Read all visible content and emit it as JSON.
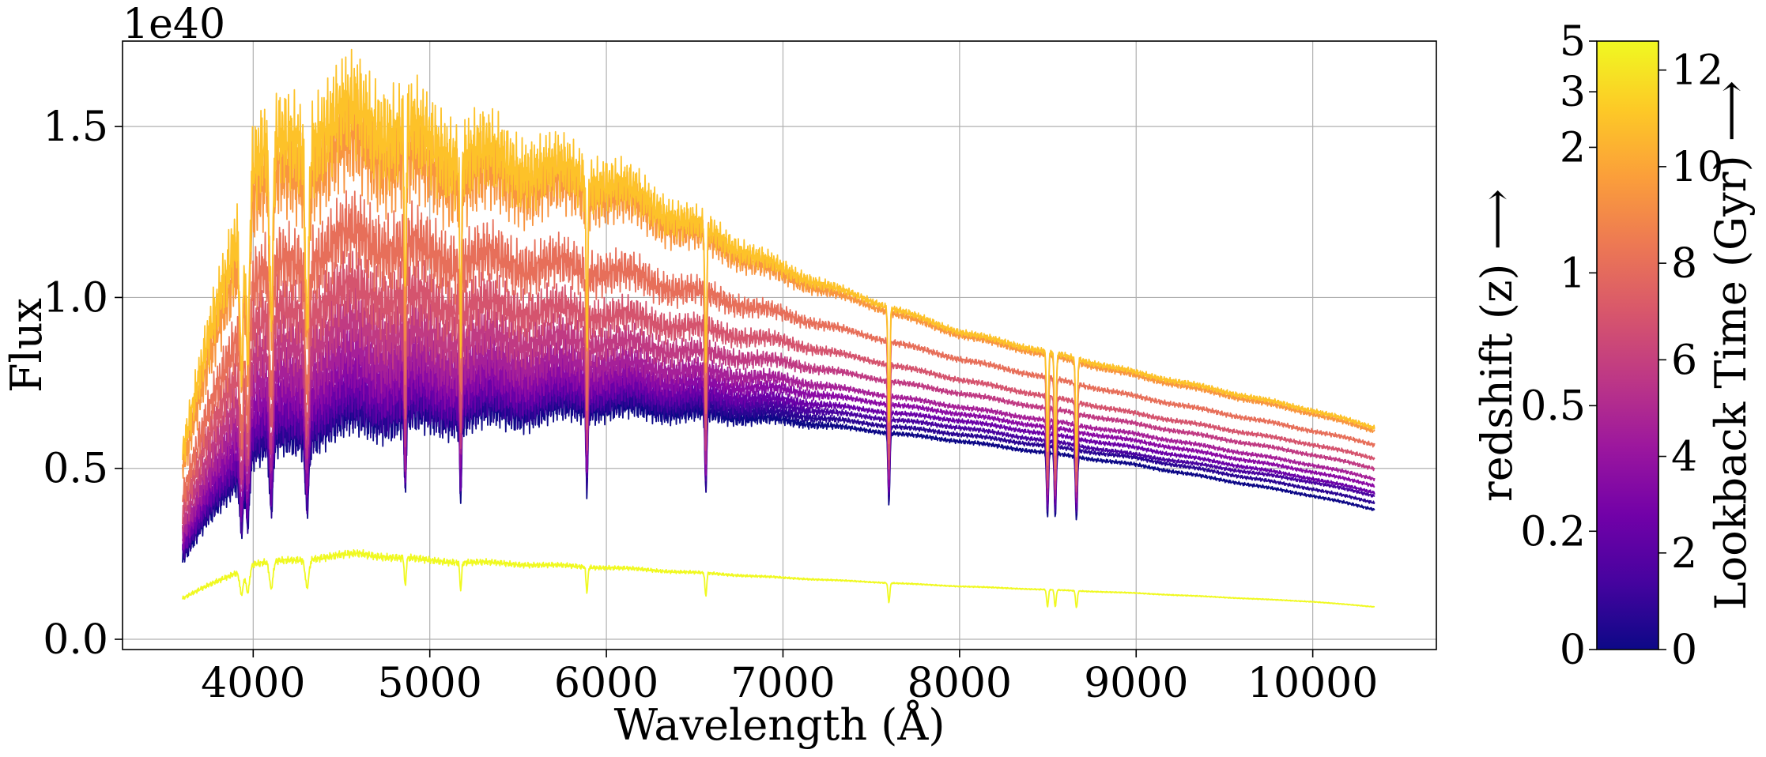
{
  "chart_data": {
    "type": "line",
    "title": "",
    "xlabel": "Wavelength (Å)",
    "ylabel": "Flux",
    "y_offset_text": "1e40",
    "xlim": [
      3260,
      10700
    ],
    "ylim": [
      -0.03,
      1.75
    ],
    "x_ticks": [
      {
        "value": 4000,
        "label": "4000"
      },
      {
        "value": 5000,
        "label": "5000"
      },
      {
        "value": 6000,
        "label": "6000"
      },
      {
        "value": 7000,
        "label": "7000"
      },
      {
        "value": 8000,
        "label": "8000"
      },
      {
        "value": 9000,
        "label": "9000"
      },
      {
        "value": 10000,
        "label": "10000"
      }
    ],
    "y_ticks": [
      {
        "value": 0.0,
        "label": "0.0"
      },
      {
        "value": 0.5,
        "label": "0.5"
      },
      {
        "value": 1.0,
        "label": "1.0"
      },
      {
        "value": 1.5,
        "label": "1.5"
      }
    ],
    "grid": true,
    "wavelength_range": [
      3600,
      10350
    ],
    "absorption_lines": [
      3934,
      3969,
      4102,
      4305,
      4861,
      5175,
      5890,
      6563,
      7600,
      8498,
      8542,
      8662
    ],
    "series": [
      {
        "lookback_gyr": 12.4,
        "color": "#f0f921",
        "x": [
          3600,
          4000,
          4600,
          5000,
          6000,
          7000,
          8000,
          9000,
          10000,
          10350
        ],
        "y": [
          0.12,
          0.22,
          0.25,
          0.23,
          0.21,
          0.18,
          0.155,
          0.135,
          0.11,
          0.095
        ]
      },
      {
        "lookback_gyr": 11.2,
        "color": "#fdc229",
        "x": [
          3600,
          4000,
          4600,
          5000,
          6000,
          7000,
          8000,
          9000,
          10000,
          10350
        ],
        "y": [
          0.55,
          1.4,
          1.54,
          1.44,
          1.34,
          1.08,
          0.9,
          0.78,
          0.67,
          0.62
        ]
      },
      {
        "lookback_gyr": 10.6,
        "color": "#f89540",
        "x": [
          3600,
          4000,
          4600,
          5000,
          6000,
          7000,
          8000,
          9000,
          10000,
          10350
        ],
        "y": [
          0.5,
          1.3,
          1.44,
          1.36,
          1.3,
          1.06,
          0.89,
          0.77,
          0.66,
          0.61
        ]
      },
      {
        "lookback_gyr": 8.9,
        "color": "#e76f5a",
        "x": [
          3600,
          4000,
          4600,
          5000,
          6000,
          7000,
          8000,
          9000,
          10000,
          10350
        ],
        "y": [
          0.42,
          1.05,
          1.18,
          1.12,
          1.08,
          0.95,
          0.82,
          0.71,
          0.61,
          0.57
        ]
      },
      {
        "lookback_gyr": 7.7,
        "color": "#d5546e",
        "x": [
          3600,
          4000,
          4600,
          5000,
          6000,
          7000,
          8000,
          9000,
          10000,
          10350
        ],
        "y": [
          0.38,
          0.92,
          1.02,
          0.98,
          0.95,
          0.87,
          0.76,
          0.66,
          0.57,
          0.53
        ]
      },
      {
        "lookback_gyr": 6.6,
        "color": "#c03a83",
        "x": [
          3600,
          4000,
          4600,
          5000,
          6000,
          7000,
          8000,
          9000,
          10000,
          10350
        ],
        "y": [
          0.34,
          0.82,
          0.92,
          0.88,
          0.87,
          0.81,
          0.72,
          0.63,
          0.54,
          0.5
        ]
      },
      {
        "lookback_gyr": 5.5,
        "color": "#a62098",
        "x": [
          3600,
          4000,
          4600,
          5000,
          6000,
          7000,
          8000,
          9000,
          10000,
          10350
        ],
        "y": [
          0.31,
          0.74,
          0.84,
          0.81,
          0.81,
          0.76,
          0.68,
          0.6,
          0.51,
          0.47
        ]
      },
      {
        "lookback_gyr": 4.5,
        "color": "#8b0aa5",
        "x": [
          3600,
          4000,
          4600,
          5000,
          6000,
          7000,
          8000,
          9000,
          10000,
          10350
        ],
        "y": [
          0.29,
          0.68,
          0.78,
          0.76,
          0.77,
          0.73,
          0.66,
          0.58,
          0.49,
          0.45
        ]
      },
      {
        "lookback_gyr": 3.5,
        "color": "#6a00a8",
        "x": [
          3600,
          4000,
          4600,
          5000,
          6000,
          7000,
          8000,
          9000,
          10000,
          10350
        ],
        "y": [
          0.27,
          0.63,
          0.73,
          0.72,
          0.74,
          0.7,
          0.64,
          0.56,
          0.47,
          0.43
        ]
      },
      {
        "lookback_gyr": 2.5,
        "color": "#4903a0",
        "x": [
          3600,
          4000,
          4600,
          5000,
          6000,
          7000,
          8000,
          9000,
          10000,
          10350
        ],
        "y": [
          0.26,
          0.6,
          0.7,
          0.69,
          0.72,
          0.68,
          0.62,
          0.54,
          0.46,
          0.42
        ]
      },
      {
        "lookback_gyr": 1.5,
        "color": "#2a0593",
        "x": [
          3600,
          4000,
          4600,
          5000,
          6000,
          7000,
          8000,
          9000,
          10000,
          10350
        ],
        "y": [
          0.25,
          0.57,
          0.67,
          0.67,
          0.7,
          0.66,
          0.6,
          0.53,
          0.44,
          0.4
        ]
      },
      {
        "lookback_gyr": 0.6,
        "color": "#0d0887",
        "x": [
          3600,
          4000,
          4600,
          5000,
          6000,
          7000,
          8000,
          9000,
          10000,
          10350
        ],
        "y": [
          0.24,
          0.55,
          0.65,
          0.65,
          0.68,
          0.64,
          0.58,
          0.51,
          0.42,
          0.38
        ]
      }
    ],
    "colorbar": {
      "colormap": "plasma",
      "stops": [
        "#0d0887",
        "#46039f",
        "#7201a8",
        "#9c179e",
        "#bd3786",
        "#d8576b",
        "#ed7953",
        "#fb9f3a",
        "#fdca26",
        "#f0f921"
      ],
      "range": [
        0,
        12.6
      ],
      "right_label": "Lookback Time (Gyr) ⟶",
      "right_ticks": [
        {
          "value": 0,
          "label": "0"
        },
        {
          "value": 2,
          "label": "2"
        },
        {
          "value": 4,
          "label": "4"
        },
        {
          "value": 6,
          "label": "6"
        },
        {
          "value": 8,
          "label": "8"
        },
        {
          "value": 10,
          "label": "10"
        },
        {
          "value": 12,
          "label": "12"
        }
      ],
      "left_label": "redshift (z) ⟶",
      "left_ticks": [
        {
          "lookback_gyr": 0,
          "label": "0"
        },
        {
          "lookback_gyr": 2.45,
          "label": "0.2"
        },
        {
          "lookback_gyr": 5.05,
          "label": "0.5"
        },
        {
          "lookback_gyr": 7.8,
          "label": "1"
        },
        {
          "lookback_gyr": 10.4,
          "label": "2"
        },
        {
          "lookback_gyr": 11.55,
          "label": "3"
        },
        {
          "lookback_gyr": 12.6,
          "label": "5"
        }
      ]
    }
  }
}
